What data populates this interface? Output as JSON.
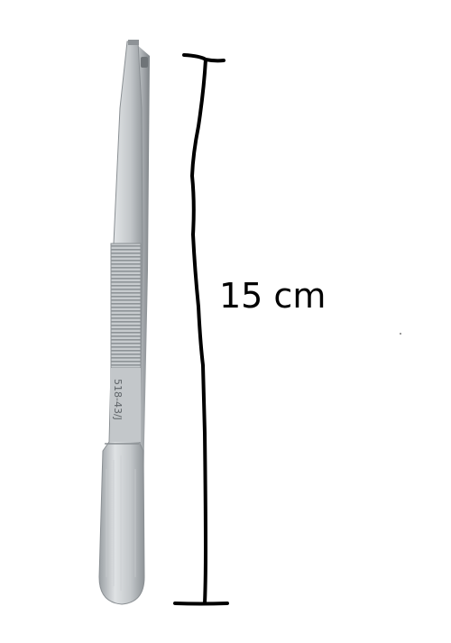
{
  "measurement": {
    "label": "15 cm"
  },
  "instrument": {
    "engraving": "518-43/J"
  },
  "icons": {
    "instrument": "tissue-forceps-icon",
    "ruler": "measurement-bracket-icon"
  },
  "colors": {
    "background": "#ffffff",
    "steel_light": "#d9dcdf",
    "steel_mid": "#b9bdc1",
    "steel_dark": "#8d9296",
    "ink": "#000000"
  }
}
